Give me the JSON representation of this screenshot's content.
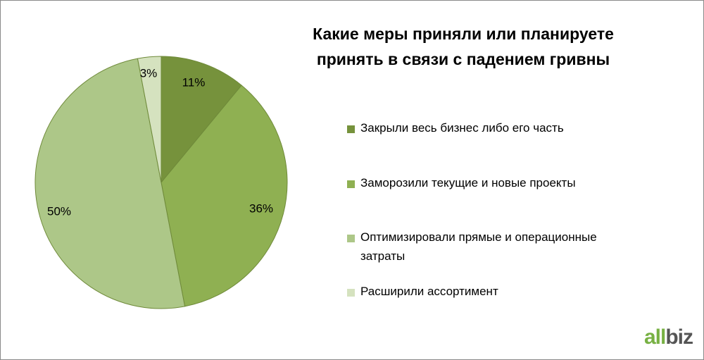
{
  "chart_data": {
    "type": "pie",
    "title_lines": [
      "Какие меры приняли или планируете",
      "принять в связи с падением гривны"
    ],
    "slices": [
      {
        "label": "Закрыли весь бизнес либо его часть",
        "value": 11,
        "display": "11%",
        "color": "#76923c"
      },
      {
        "label": "Заморозили текущие и новые проекты",
        "value": 36,
        "display": "36%",
        "color": "#8fb052"
      },
      {
        "label": "Оптимизировали прямые и операционные затраты",
        "label_lines": [
          "Оптимизировали прямые и операционные",
          "затраты"
        ],
        "value": 50,
        "display": "50%",
        "color": "#adc788"
      },
      {
        "label": "Расширили ассортимент",
        "value": 3,
        "display": "3%",
        "color": "#d5e2bf"
      }
    ],
    "legend_position": "right"
  },
  "logo": {
    "part1": "all",
    "part2": "biz"
  }
}
